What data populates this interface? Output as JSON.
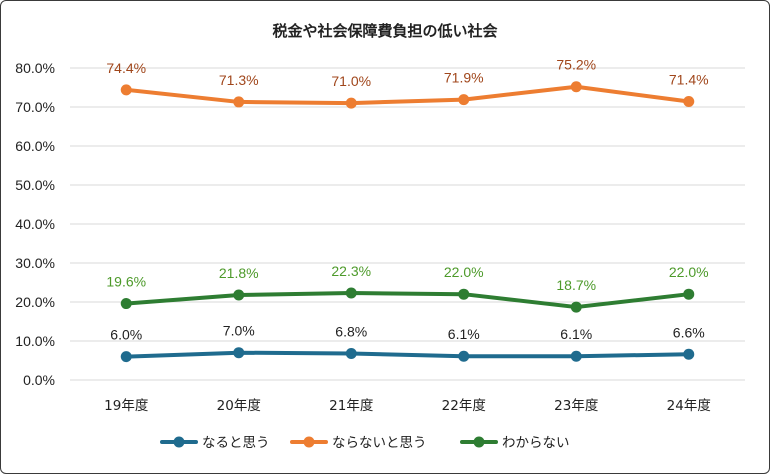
{
  "chart_data": {
    "type": "line",
    "title": "税金や社会保障費負担の低い社会",
    "categories": [
      "19年度",
      "20年度",
      "21年度",
      "22年度",
      "23年度",
      "24年度"
    ],
    "ylim": [
      0,
      80
    ],
    "yticks": [
      0,
      10,
      20,
      30,
      40,
      50,
      60,
      70,
      80
    ],
    "ytick_labels": [
      "0.0%",
      "10.0%",
      "20.0%",
      "30.0%",
      "40.0%",
      "50.0%",
      "60.0%",
      "70.0%",
      "80.0%"
    ],
    "grid": true,
    "legend_position": "bottom",
    "series": [
      {
        "name": "なると思う",
        "color": "#1f6b8e",
        "label_color": "#222222",
        "values": [
          6.0,
          7.0,
          6.8,
          6.1,
          6.1,
          6.6
        ],
        "labels": [
          "6.0%",
          "7.0%",
          "6.8%",
          "6.1%",
          "6.1%",
          "6.6%"
        ]
      },
      {
        "name": "ならないと思う",
        "color": "#ed7d31",
        "label_color": "#a0461b",
        "values": [
          74.4,
          71.3,
          71.0,
          71.9,
          75.2,
          71.4
        ],
        "labels": [
          "74.4%",
          "71.3%",
          "71.0%",
          "71.9%",
          "75.2%",
          "71.4%"
        ]
      },
      {
        "name": "わからない",
        "color": "#2e7d32",
        "label_color": "#4d9a2a",
        "values": [
          19.6,
          21.8,
          22.3,
          22.0,
          18.7,
          22.0
        ],
        "labels": [
          "19.6%",
          "21.8%",
          "22.3%",
          "22.0%",
          "18.7%",
          "22.0%"
        ]
      }
    ]
  }
}
